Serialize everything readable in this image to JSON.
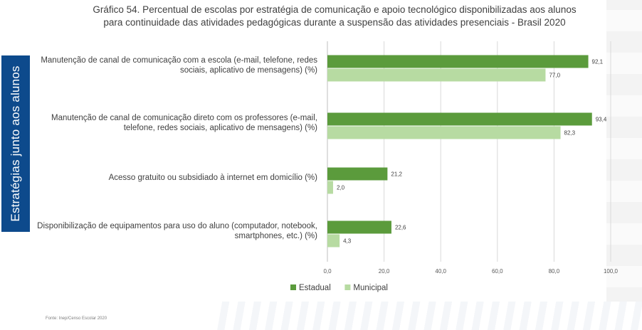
{
  "title": {
    "line1": "Gráfico 54. Percentual de escolas por estratégia de comunicação e apoio tecnológico disponibilizadas aos alunos",
    "line2": "para continuidade das atividades pedagógicas durante a suspensão das atividades presenciais - Brasil 2020"
  },
  "side_tab": {
    "label": "Estratégias junto aos alunos",
    "color": "#0d4a8c"
  },
  "source": "Fonte: Inep/Censo Escolar 2020",
  "colors": {
    "estadual": "#5b9b3c",
    "municipal": "#b7dba2",
    "grid": "#d9d9d9"
  },
  "chart_data": {
    "type": "bar",
    "orientation": "horizontal",
    "categories": [
      [
        "Manutenção de canal de comunicação com a escola (e-mail, telefone, redes",
        "sociais, aplicativo de mensagens) (%)"
      ],
      [
        "Manutenção de canal de comunicação direto com os professores (e-mail,",
        "telefone, redes sociais, aplicativo de mensagens) (%)"
      ],
      [
        "Acesso gratuito ou subsidiado à internet em domicílio (%)"
      ],
      [
        "Disponibilização de equipamentos para uso do aluno (computador, notebook,",
        "smartphones, etc.) (%)"
      ]
    ],
    "series": [
      {
        "name": "Estadual",
        "values": [
          92.1,
          93.4,
          21.2,
          22.6
        ],
        "labels": [
          "92,1",
          "93,4",
          "21,2",
          "22,6"
        ]
      },
      {
        "name": "Municipal",
        "values": [
          77.0,
          82.3,
          2.0,
          4.3
        ],
        "labels": [
          "77,0",
          "82,3",
          "2,0",
          "4,3"
        ]
      }
    ],
    "xlim": [
      0,
      100
    ],
    "xticks": [
      0,
      20,
      40,
      60,
      80,
      100
    ],
    "xtick_labels": [
      "0,0",
      "20,0",
      "40,0",
      "60,0",
      "80,0",
      "100,0"
    ],
    "grid": true,
    "legend": "bottom"
  }
}
